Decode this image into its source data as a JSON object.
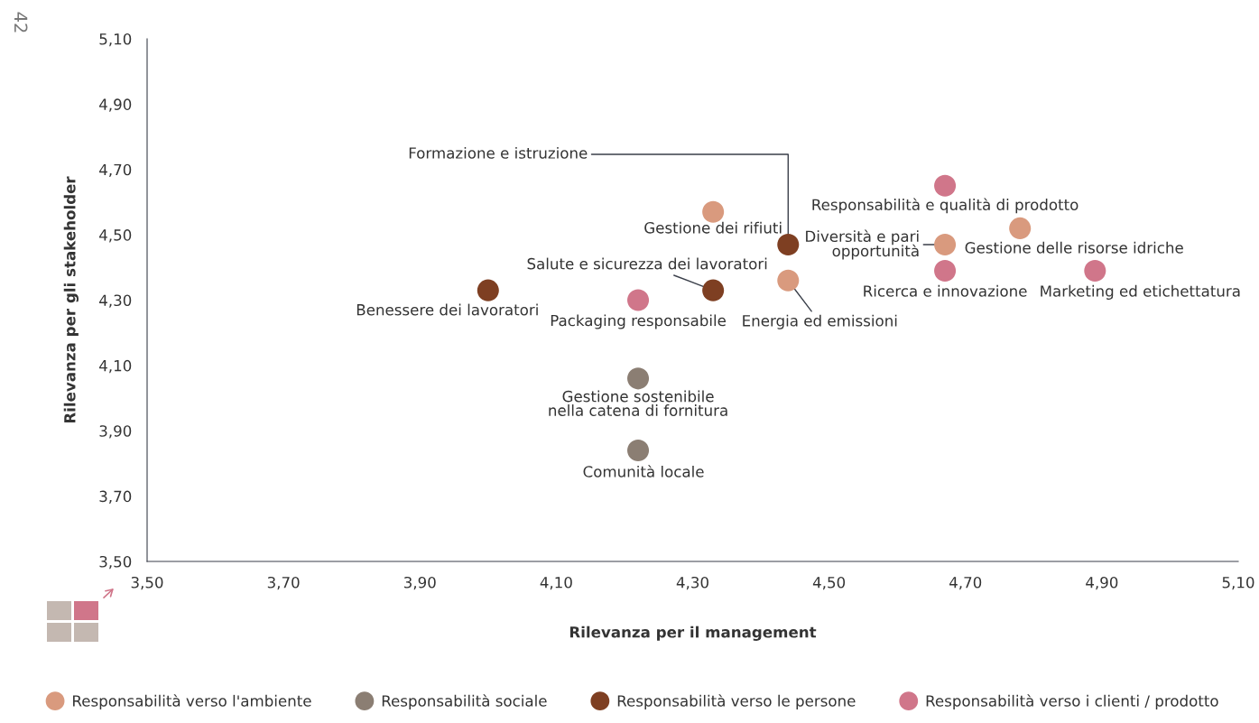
{
  "chart_data": {
    "type": "scatter",
    "xlabel": "Rilevanza per il management",
    "ylabel": "Rilevanza per gli stakeholder",
    "xlim": [
      3.5,
      5.1
    ],
    "ylim": [
      3.5,
      5.1
    ],
    "xticks": [
      {
        "value": 3.5,
        "label": "3,50"
      },
      {
        "value": 3.7,
        "label": "3,70"
      },
      {
        "value": 3.9,
        "label": "3,90"
      },
      {
        "value": 4.1,
        "label": "4,10"
      },
      {
        "value": 4.3,
        "label": "4,30"
      },
      {
        "value": 4.5,
        "label": "4,50"
      },
      {
        "value": 4.7,
        "label": "4,70"
      },
      {
        "value": 4.9,
        "label": "4,90"
      },
      {
        "value": 5.1,
        "label": "5,10"
      }
    ],
    "yticks": [
      {
        "value": 3.5,
        "label": "3,50"
      },
      {
        "value": 3.7,
        "label": "3,70"
      },
      {
        "value": 3.9,
        "label": "3,90"
      },
      {
        "value": 4.1,
        "label": "4,10"
      },
      {
        "value": 4.3,
        "label": "4,30"
      },
      {
        "value": 4.5,
        "label": "4,50"
      },
      {
        "value": 4.7,
        "label": "4,70"
      },
      {
        "value": 4.9,
        "label": "4,90"
      },
      {
        "value": 5.1,
        "label": "5,10"
      }
    ],
    "series": [
      {
        "name": "Responsabilità verso l'ambiente",
        "color": "#d99a7e",
        "x": [
          4.33,
          4.44,
          4.67,
          4.78
        ],
        "values": [
          4.57,
          4.36,
          4.47,
          4.52
        ]
      },
      {
        "name": "Responsabilità sociale",
        "color": "#8b7e73",
        "x": [
          4.22,
          4.22
        ],
        "values": [
          4.06,
          3.84
        ]
      },
      {
        "name": "Responsabilità verso le persone",
        "color": "#7e3f22",
        "x": [
          4.0,
          4.33,
          4.44
        ],
        "values": [
          4.33,
          4.33,
          4.47
        ]
      },
      {
        "name": "Responsabilità verso i clienti / prodotto",
        "color": "#d0768a",
        "x": [
          4.22,
          4.67,
          4.67,
          4.89
        ],
        "values": [
          4.3,
          4.65,
          4.39,
          4.39
        ]
      }
    ],
    "annotations": [
      {
        "text": "Formazione e istruzione",
        "x": 4.44,
        "y": 4.47
      },
      {
        "text": "Gestione dei rifiuti",
        "x": 4.33,
        "y": 4.57
      },
      {
        "text": "Salute e sicurezza dei lavoratori",
        "x": 4.33,
        "y": 4.33
      },
      {
        "text": "Benessere dei lavoratori",
        "x": 4.0,
        "y": 4.33
      },
      {
        "text": "Packaging responsabile",
        "x": 4.22,
        "y": 4.3
      },
      {
        "text": "Energia ed emissioni",
        "x": 4.44,
        "y": 4.36
      },
      {
        "text": "Gestione sostenibile\nnella catena di fornitura",
        "x": 4.22,
        "y": 4.06
      },
      {
        "text": "Comunità locale",
        "x": 4.22,
        "y": 3.84
      },
      {
        "text": "Responsabilità e qualità di prodotto",
        "x": 4.67,
        "y": 4.65
      },
      {
        "text": "Diversità e pari\nopportunità",
        "x": 4.67,
        "y": 4.47
      },
      {
        "text": "Gestione delle risorse idriche",
        "x": 4.78,
        "y": 4.52
      },
      {
        "text": "Ricerca e innovazione",
        "x": 4.67,
        "y": 4.39
      },
      {
        "text": "Marketing ed etichettatura",
        "x": 4.89,
        "y": 4.39
      },
      "42"
    ],
    "legend": "bottom",
    "marker": "circle",
    "grid": false
  }
}
